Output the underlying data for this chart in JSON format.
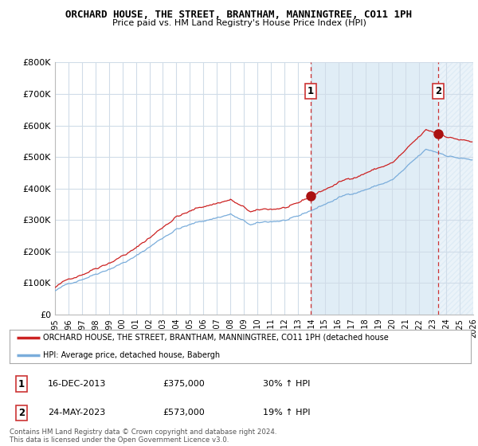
{
  "title": "ORCHARD HOUSE, THE STREET, BRANTHAM, MANNINGTREE, CO11 1PH",
  "subtitle": "Price paid vs. HM Land Registry's House Price Index (HPI)",
  "ylim": [
    0,
    800000
  ],
  "yticks": [
    0,
    100000,
    200000,
    300000,
    400000,
    500000,
    600000,
    700000,
    800000
  ],
  "ytick_labels": [
    "£0",
    "£100K",
    "£200K",
    "£300K",
    "£400K",
    "£500K",
    "£600K",
    "£700K",
    "£800K"
  ],
  "xlim_start": 1995.0,
  "xlim_end": 2026.0,
  "sale1_date": 2013.96,
  "sale1_price": 375000,
  "sale2_date": 2023.39,
  "sale2_price": 573000,
  "hpi_line_color": "#7aaddb",
  "price_line_color": "#cc2222",
  "sale_marker_color": "#aa1111",
  "dashed_line_color": "#cc3333",
  "grid_color": "#d0dce8",
  "shade_color": "#c8dff0",
  "legend_label_red": "ORCHARD HOUSE, THE STREET, BRANTHAM, MANNINGTREE, CO11 1PH (detached house",
  "legend_label_blue": "HPI: Average price, detached house, Babergh",
  "footnote": "Contains HM Land Registry data © Crown copyright and database right 2024.\nThis data is licensed under the Open Government Licence v3.0.",
  "table_rows": [
    [
      "1",
      "16-DEC-2013",
      "£375,000",
      "30% ↑ HPI"
    ],
    [
      "2",
      "24-MAY-2023",
      "£573,000",
      "19% ↑ HPI"
    ]
  ]
}
